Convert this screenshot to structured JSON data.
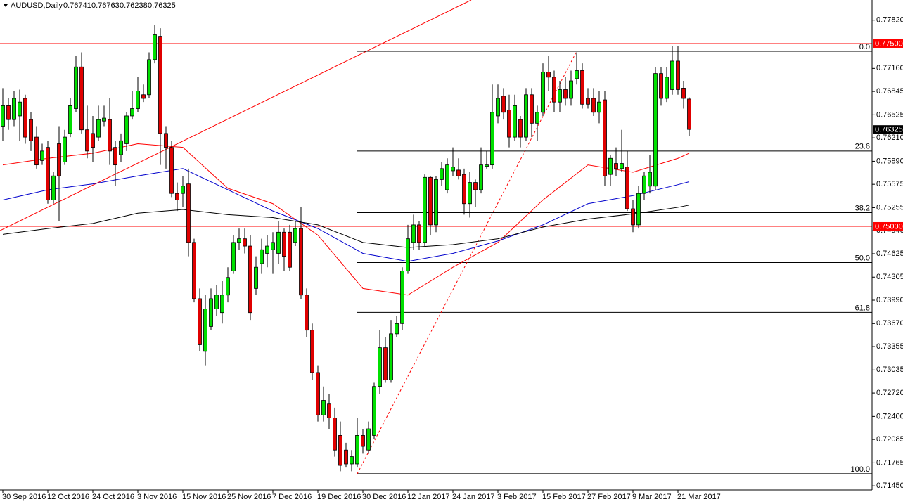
{
  "chart_data": {
    "type": "candlestick",
    "symbol": "AUDUSD,Daily",
    "categories": [
      "30 Sep 2016",
      null,
      null,
      null,
      null,
      null,
      null,
      null,
      "12 Oct 2016",
      null,
      null,
      null,
      null,
      null,
      null,
      null,
      "24 Oct 2016",
      null,
      null,
      null,
      null,
      null,
      null,
      null,
      "3 Nov 2016",
      null,
      null,
      null,
      null,
      null,
      null,
      null,
      "15 Nov 2016",
      null,
      null,
      null,
      null,
      null,
      null,
      null,
      "25 Nov 2016",
      null,
      null,
      null,
      null,
      null,
      null,
      null,
      "7 Dec 2016",
      null,
      null,
      null,
      null,
      null,
      null,
      null,
      "19 Dec 2016",
      null,
      null,
      null,
      null,
      null,
      null,
      null,
      "30 Dec 2016",
      null,
      null,
      null,
      null,
      null,
      null,
      null,
      "12 Jan 2017",
      null,
      null,
      null,
      null,
      null,
      null,
      null,
      "24 Jan 2017",
      null,
      null,
      null,
      null,
      null,
      null,
      null,
      "3 Feb 2017",
      null,
      null,
      null,
      null,
      null,
      null,
      null,
      "15 Feb 2017",
      null,
      null,
      null,
      null,
      null,
      null,
      null,
      "27 Feb 2017",
      null,
      null,
      null,
      null,
      null,
      null,
      null,
      "9 Mar 2017",
      null,
      null,
      null,
      null,
      null,
      null,
      null,
      "21 Mar 2017",
      null,
      null
    ],
    "open": [
      0.7637,
      0.7665,
      0.7646,
      0.7651,
      0.7675,
      0.7646,
      0.7622,
      0.759,
      0.7608,
      0.7536,
      0.7613,
      0.7588,
      0.7627,
      0.7661,
      0.7718,
      0.7632,
      0.7627,
      0.7622,
      0.7644,
      0.7646,
      0.7608,
      0.7598,
      0.7613,
      0.7651,
      0.7661,
      0.768,
      0.768,
      0.7728,
      0.776,
      0.7627,
      0.7608,
      0.7545,
      0.7545,
      0.7558,
      0.7478,
      0.7401,
      0.7329,
      0.7363,
      0.7387,
      0.7382,
      0.7406,
      0.7439,
      0.7478,
      0.7483,
      0.7473,
      0.7415,
      0.7449,
      0.7463,
      0.7468,
      0.7463,
      0.7492,
      0.7492,
      0.7478,
      0.7497,
      0.7406,
      0.7358,
      0.73,
      0.7242,
      0.7257,
      0.7238,
      0.7214,
      0.7194,
      0.7175,
      0.7175,
      0.7214,
      0.7194,
      0.7214,
      0.7281,
      0.7334,
      0.729,
      0.7353,
      0.7367,
      0.7439,
      0.7478,
      0.7502,
      0.7478,
      0.7567,
      0.7502,
      0.7564,
      0.755,
      0.7576,
      0.7577,
      0.7571,
      0.7531,
      0.756,
      0.755,
      0.7582,
      0.7584,
      0.7651,
      0.7678,
      0.7659,
      0.7622,
      0.7646,
      0.7622,
      0.768,
      0.7641,
      0.7656,
      0.7711,
      0.7704,
      0.767,
      0.7687,
      0.7675,
      0.7702,
      0.7713,
      0.7675,
      0.7675,
      0.7656,
      0.7673,
      0.7571,
      0.7586,
      0.7579,
      0.7581,
      0.7524,
      0.7502,
      0.7545,
      0.7555,
      0.7555,
      0.7709,
      0.7675,
      0.7687,
      0.7726,
      0.7689,
      0.76741
    ],
    "high": [
      0.7689,
      0.7675,
      0.7685,
      0.7687,
      0.768,
      0.7656,
      0.7637,
      0.7613,
      0.7617,
      0.7574,
      0.7637,
      0.7632,
      0.7675,
      0.7733,
      0.7738,
      0.7665,
      0.7651,
      0.7665,
      0.7665,
      0.7675,
      0.7617,
      0.7627,
      0.7656,
      0.7685,
      0.7704,
      0.7694,
      0.7738,
      0.7776,
      0.7771,
      0.7637,
      0.7617,
      0.756,
      0.7569,
      0.7579,
      0.7483,
      0.7415,
      0.7406,
      0.7415,
      0.742,
      0.7425,
      0.7444,
      0.7488,
      0.7497,
      0.7497,
      0.7488,
      0.7459,
      0.7483,
      0.7488,
      0.7492,
      0.7507,
      0.7497,
      0.7502,
      0.7507,
      0.7526,
      0.7415,
      0.7367,
      0.731,
      0.7281,
      0.7271,
      0.7252,
      0.7233,
      0.7204,
      0.7194,
      0.7238,
      0.7223,
      0.7233,
      0.7286,
      0.7358,
      0.7348,
      0.7372,
      0.7377,
      0.7444,
      0.7502,
      0.7516,
      0.7507,
      0.7571,
      0.7569,
      0.7569,
      0.7588,
      0.7593,
      0.7608,
      0.7593,
      0.7579,
      0.7574,
      0.7564,
      0.7608,
      0.7603,
      0.7694,
      0.7694,
      0.7689,
      0.768,
      0.768,
      0.7651,
      0.7689,
      0.7689,
      0.7665,
      0.7723,
      0.7733,
      0.7713,
      0.7699,
      0.7704,
      0.7713,
      0.7738,
      0.7723,
      0.7689,
      0.7689,
      0.7685,
      0.7685,
      0.7598,
      0.7608,
      0.7632,
      0.7603,
      0.7536,
      0.7555,
      0.7574,
      0.7598,
      0.7718,
      0.7718,
      0.7718,
      0.7747,
      0.7747,
      0.7699,
      0.76763
    ],
    "low": [
      0.7617,
      0.7632,
      0.7637,
      0.7617,
      0.7613,
      0.7603,
      0.7579,
      0.7584,
      0.7531,
      0.7531,
      0.7507,
      0.7584,
      0.7622,
      0.7656,
      0.7627,
      0.7593,
      0.7588,
      0.7617,
      0.7637,
      0.7584,
      0.7555,
      0.7588,
      0.7603,
      0.7646,
      0.7656,
      0.767,
      0.7675,
      0.7723,
      0.7584,
      0.7579,
      0.754,
      0.7521,
      0.7526,
      0.7459,
      0.7396,
      0.7329,
      0.731,
      0.7358,
      0.7377,
      0.7367,
      0.7396,
      0.7435,
      0.7468,
      0.7463,
      0.7372,
      0.7406,
      0.7435,
      0.7444,
      0.7435,
      0.7449,
      0.7439,
      0.7439,
      0.7473,
      0.7401,
      0.7348,
      0.729,
      0.7233,
      0.7233,
      0.7223,
      0.7185,
      0.7165,
      0.717,
      0.7165,
      0.717,
      0.7189,
      0.7189,
      0.7209,
      0.7271,
      0.7286,
      0.7286,
      0.7348,
      0.7358,
      0.7435,
      0.7468,
      0.7468,
      0.7473,
      0.7488,
      0.7492,
      0.7555,
      0.7545,
      0.7569,
      0.7564,
      0.7516,
      0.7512,
      0.7526,
      0.7545,
      0.7579,
      0.7579,
      0.7641,
      0.7646,
      0.7608,
      0.7617,
      0.7608,
      0.7617,
      0.7622,
      0.7617,
      0.7651,
      0.7685,
      0.7656,
      0.7656,
      0.7665,
      0.7665,
      0.7694,
      0.7661,
      0.7661,
      0.7651,
      0.7641,
      0.7555,
      0.7555,
      0.7569,
      0.7574,
      0.7521,
      0.7492,
      0.7497,
      0.7536,
      0.7545,
      0.755,
      0.7665,
      0.767,
      0.768,
      0.768,
      0.7661,
      0.76238
    ],
    "close": [
      0.7665,
      0.7646,
      0.7675,
      0.767,
      0.7622,
      0.7617,
      0.7584,
      0.7603,
      0.7536,
      0.7569,
      0.7569,
      0.7622,
      0.7665,
      0.7718,
      0.7632,
      0.7603,
      0.7608,
      0.7646,
      0.7648,
      0.7603,
      0.7584,
      0.7617,
      0.7651,
      0.7661,
      0.7685,
      0.7675,
      0.7728,
      0.7762,
      0.7627,
      0.7608,
      0.7545,
      0.7536,
      0.7555,
      0.7478,
      0.7401,
      0.7338,
      0.7387,
      0.7401,
      0.7406,
      0.7406,
      0.743,
      0.7478,
      0.7483,
      0.7473,
      0.7382,
      0.7444,
      0.7468,
      0.7473,
      0.7478,
      0.7492,
      0.7459,
      0.7444,
      0.7497,
      0.7406,
      0.7358,
      0.73,
      0.7242,
      0.7262,
      0.7238,
      0.7194,
      0.7173,
      0.7175,
      0.7185,
      0.7214,
      0.7199,
      0.7223,
      0.7281,
      0.7334,
      0.729,
      0.7353,
      0.7367,
      0.7439,
      0.7483,
      0.7502,
      0.7478,
      0.7567,
      0.7502,
      0.7564,
      0.7579,
      0.7584,
      0.7581,
      0.7569,
      0.7531,
      0.756,
      0.755,
      0.7584,
      0.7584,
      0.7656,
      0.7675,
      0.7656,
      0.7622,
      0.7665,
      0.7622,
      0.768,
      0.7641,
      0.7656,
      0.7711,
      0.7704,
      0.767,
      0.7687,
      0.7675,
      0.7699,
      0.7713,
      0.7667,
      0.7667,
      0.7656,
      0.767,
      0.7569,
      0.7593,
      0.7579,
      0.7586,
      0.7524,
      0.7502,
      0.7545,
      0.7569,
      0.7574,
      0.7709,
      0.7675,
      0.7704,
      0.7726,
      0.7687,
      0.7675,
      0.76325
    ],
    "up_color": "#00e000",
    "down_color": "#e00000",
    "ylim": [
      0.71394,
      0.78096
    ],
    "yticks": [
      {
        "value": 0.7782,
        "label": "0.77820"
      },
      {
        "value": 0.7716,
        "label": "0.77160"
      },
      {
        "value": 0.76845,
        "label": "0.76845"
      },
      {
        "value": 0.76525,
        "label": "0.76525"
      },
      {
        "value": 0.7621,
        "label": "0.76210"
      },
      {
        "value": 0.7589,
        "label": "0.75890"
      },
      {
        "value": 0.75575,
        "label": "0.75575"
      },
      {
        "value": 0.75255,
        "label": "0.75255"
      },
      {
        "value": 0.7494,
        "label": "0.74940"
      },
      {
        "value": 0.74625,
        "label": "0.74625"
      },
      {
        "value": 0.74305,
        "label": "0.74305"
      },
      {
        "value": 0.7399,
        "label": "0.73990"
      },
      {
        "value": 0.7367,
        "label": "0.73670"
      },
      {
        "value": 0.73355,
        "label": "0.73355"
      },
      {
        "value": 0.73035,
        "label": "0.73035"
      },
      {
        "value": 0.7272,
        "label": "0.72720"
      },
      {
        "value": 0.724,
        "label": "0.72400"
      },
      {
        "value": 0.72085,
        "label": "0.72085"
      },
      {
        "value": 0.71765,
        "label": "0.71765"
      },
      {
        "value": 0.7145,
        "label": "0.71450"
      }
    ],
    "hlines": [
      {
        "value": 0.775,
        "label": "0.77500",
        "color": "#ff0000"
      },
      {
        "value": 0.75,
        "label": "0.75000",
        "color": "#ff0000"
      }
    ],
    "fibonacci": {
      "high": 0.77394,
      "low": 0.71616,
      "color": "#ff0000",
      "levels": [
        {
          "value": 0,
          "label": "0.0"
        },
        23.6,
        38.2,
        {
          "value": 50,
          "label": "50.0"
        },
        61.8,
        {
          "value": 100,
          "label": "100.0"
        }
      ]
    },
    "moving_averages": {
      "x": [
        0,
        8,
        16,
        24,
        32,
        40,
        48,
        56,
        64,
        72,
        80,
        88,
        96,
        104,
        112,
        120,
        122
      ],
      "series": [
        {
          "color": "#ff0000",
          "values": [
            0.7584,
            0.7593,
            0.76,
            0.7613,
            0.7608,
            0.7552,
            0.7531,
            0.7488,
            0.7415,
            0.7406,
            0.7444,
            0.7478,
            0.7536,
            0.7584,
            0.7574,
            0.7593,
            0.76
          ]
        },
        {
          "color": "#0000cc",
          "values": [
            0.7536,
            0.755,
            0.7558,
            0.7569,
            0.7579,
            0.755,
            0.7521,
            0.7497,
            0.7463,
            0.7452,
            0.7463,
            0.748,
            0.7502,
            0.7531,
            0.7542,
            0.7557,
            0.7561
          ]
        },
        {
          "color": "#000000",
          "values": [
            0.7489,
            0.7497,
            0.7504,
            0.7518,
            0.7523,
            0.7516,
            0.7512,
            0.7502,
            0.7478,
            0.7471,
            0.7475,
            0.7483,
            0.7499,
            0.751,
            0.7517,
            0.7526,
            0.7529
          ]
        }
      ]
    }
  }
}
